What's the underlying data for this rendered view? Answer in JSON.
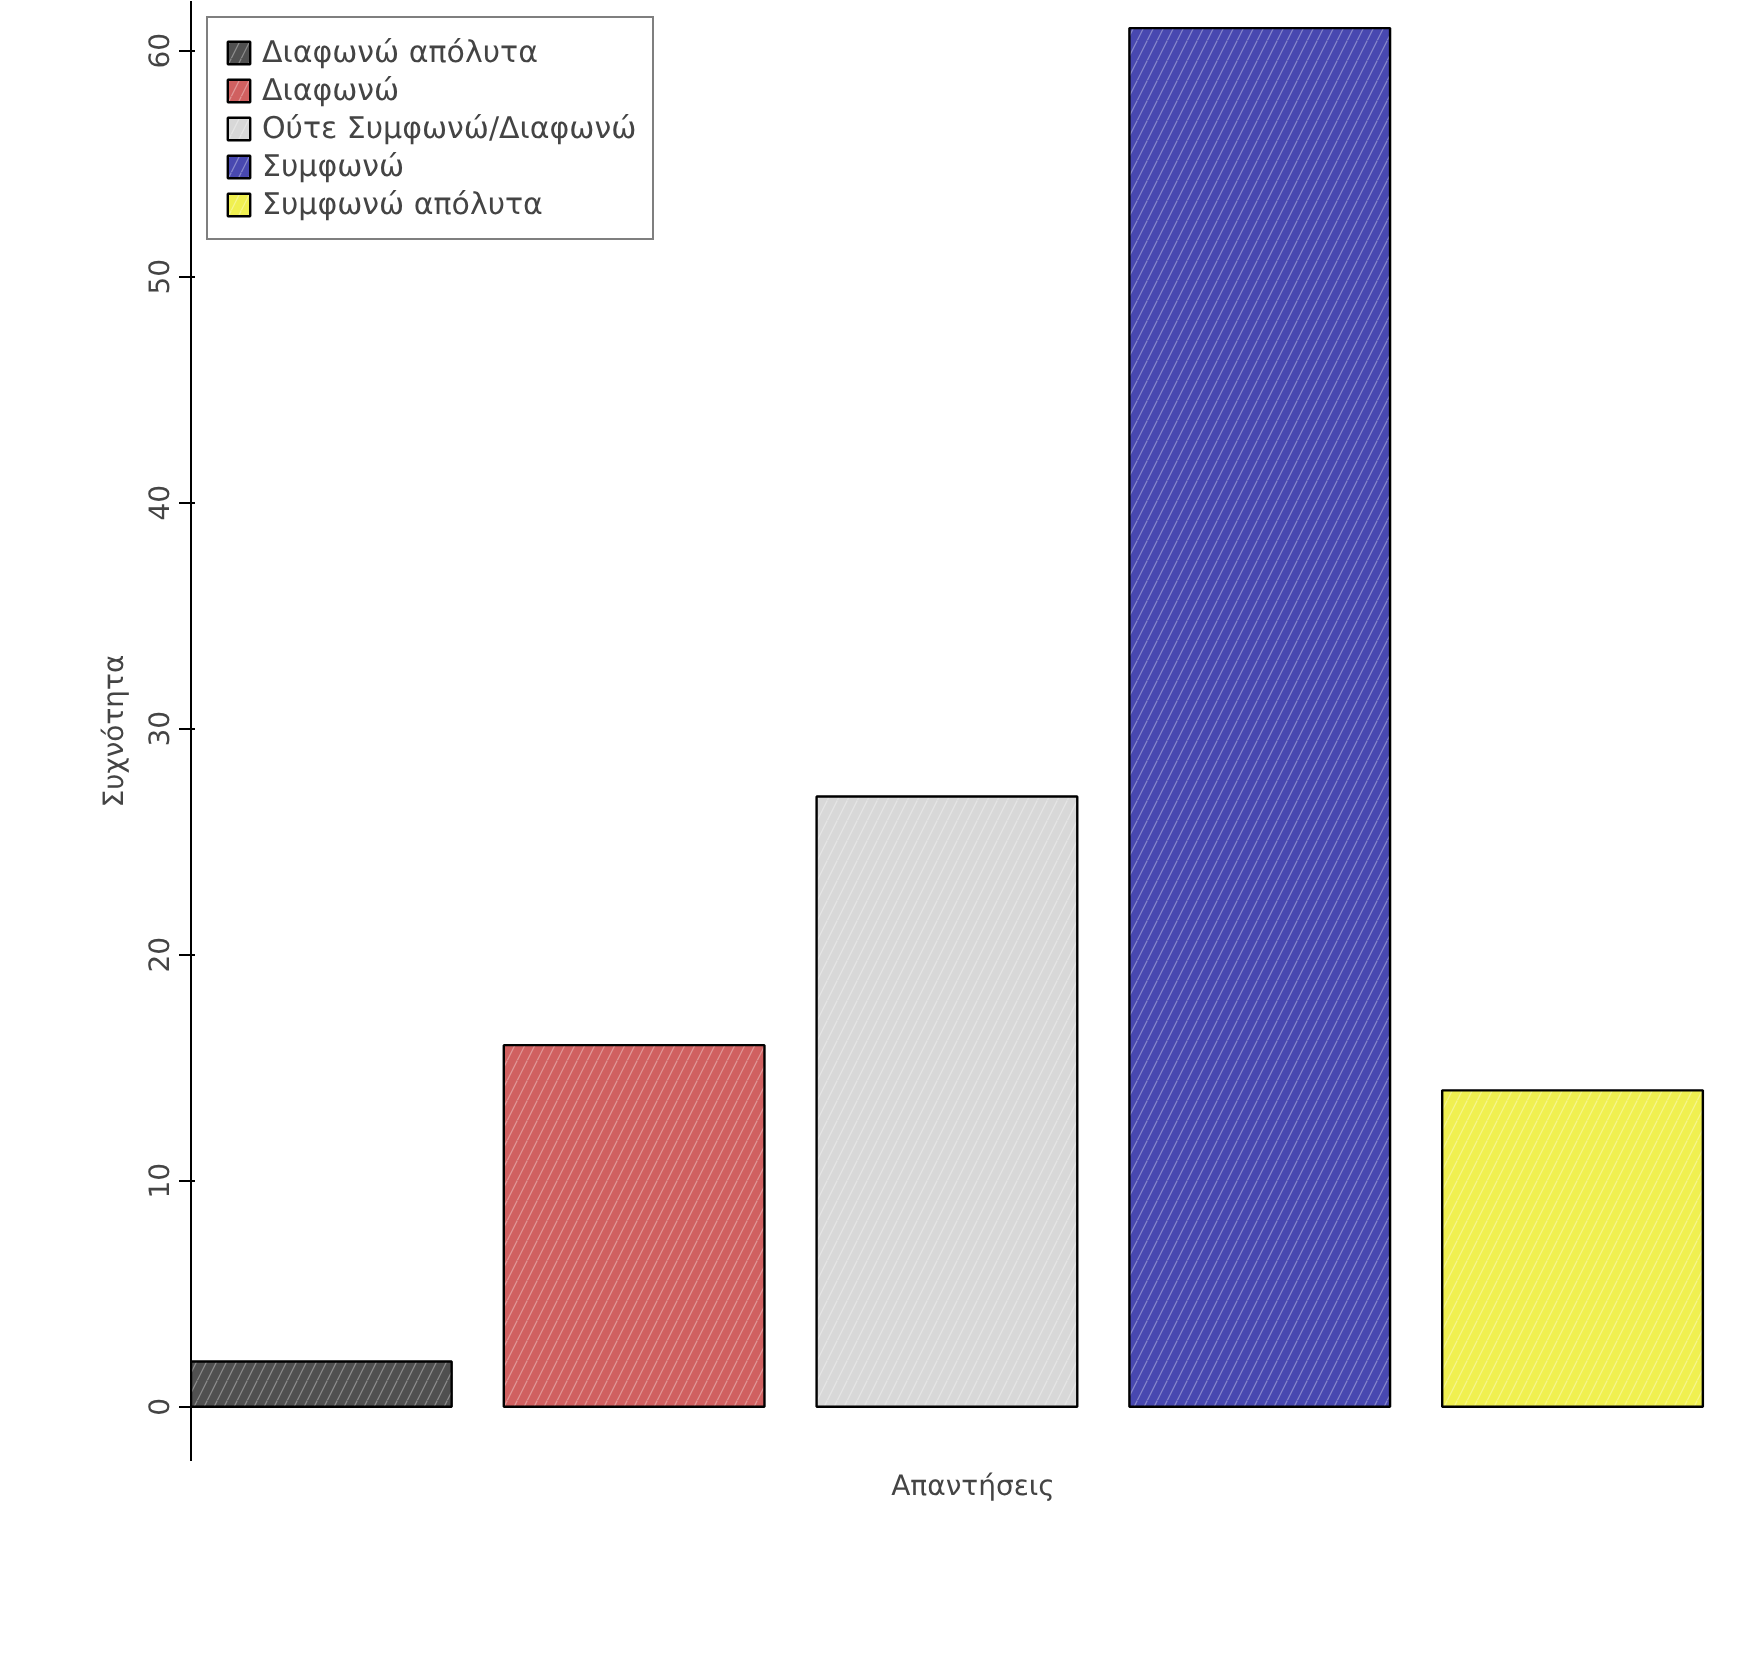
{
  "chart_data": {
    "type": "bar",
    "xlabel": "Απαντήσεις",
    "ylabel": "Συχνότητα",
    "categories": [
      null,
      null,
      null,
      null,
      null
    ],
    "stacked": true,
    "series": [
      {
        "name": "Διαφωνώ απόλυτα",
        "color": "#505050",
        "values": [
          2,
          0,
          0,
          0,
          0
        ]
      },
      {
        "name": "Διαφωνώ",
        "color": "#d06060",
        "values": [
          0,
          16,
          0,
          0,
          0
        ]
      },
      {
        "name": "Ούτε Συμφωνώ/Διαφωνώ",
        "color": "#d8d8d8",
        "values": [
          0,
          0,
          27,
          0,
          0
        ]
      },
      {
        "name": "Συμφωνώ",
        "color": "#4848b0",
        "values": [
          0,
          0,
          0,
          61,
          0
        ]
      },
      {
        "name": "Συμφωνώ απόλυτα",
        "color": "#f0f050",
        "values": [
          0,
          0,
          0,
          0,
          14
        ]
      }
    ],
    "ylim": [
      -2.4,
      62.2
    ],
    "yticks": [
      0,
      10,
      20,
      30,
      40,
      50,
      60
    ],
    "tick_labels": "y",
    "legend": "top left",
    "grid": false
  }
}
